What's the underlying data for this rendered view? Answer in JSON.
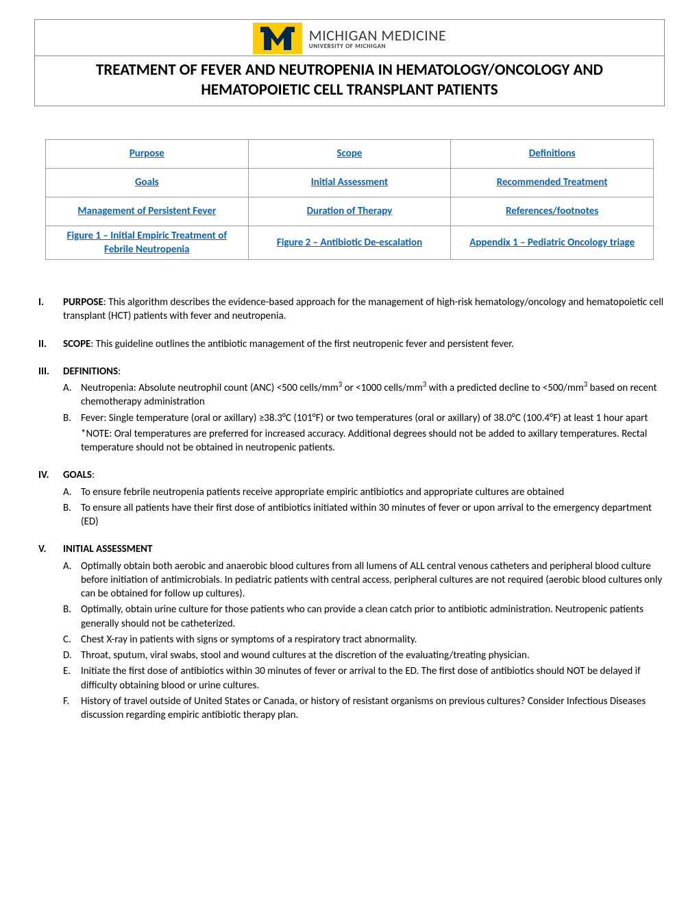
{
  "header": {
    "logo_main": "MICHIGAN MEDICINE",
    "logo_sub": "UNIVERSITY OF MICHIGAN",
    "title_line1": "TREATMENT OF FEVER AND NEUTROPENIA IN HEMATOLOGY/ONCOLOGY AND",
    "title_line2": "HEMATOPOIETIC CELL TRANSPLANT PATIENTS"
  },
  "nav": {
    "rows": [
      [
        "Purpose",
        "Scope",
        "Definitions"
      ],
      [
        "Goals",
        "Initial Assessment",
        "Recommended Treatment"
      ],
      [
        "Management of Persistent Fever",
        "Duration of Therapy",
        "References/footnotes"
      ],
      [
        "Figure 1 – Initial Empiric Treatment of Febrile Neutropenia",
        "Figure 2 – Antibiotic De-escalation",
        "Appendix 1 – Pediatric Oncology triage"
      ]
    ]
  },
  "sections": {
    "purpose": {
      "roman": "I.",
      "label": "PURPOSE",
      "text": ": This algorithm describes the evidence-based approach for the management of high-risk hematology/oncology and hematopoietic cell transplant (HCT) patients with fever and neutropenia."
    },
    "scope": {
      "roman": "II.",
      "label": "SCOPE",
      "text": ": This guideline outlines the antibiotic management of the first neutropenic fever and persistent fever."
    },
    "definitions": {
      "roman": "III.",
      "label": "DEFINITIONS",
      "colon": ":",
      "items": [
        {
          "letter": "A.",
          "pre": "Neutropenia: Absolute neutrophil count (ANC) <500 cells/mm",
          "sup1": "3",
          "mid": " or <1000 cells/mm",
          "sup2": "3",
          "post": " with a predicted decline to <500/mm",
          "sup3": "3",
          "tail": " based on recent chemotherapy administration"
        },
        {
          "letter": "B.",
          "text": "Fever: Single temperature (oral or axillary) ≥38.3°C (101°F) or two temperatures (oral or axillary) of 38.0°C (100.4°F) at least 1 hour apart"
        }
      ],
      "note": "*NOTE: Oral temperatures are preferred for increased accuracy. Additional degrees should not be added to axillary temperatures. Rectal temperature should not be obtained in neutropenic patients."
    },
    "goals": {
      "roman": "IV.",
      "label": "GOALS",
      "colon": ":",
      "items": [
        {
          "letter": "A.",
          "text": "To ensure febrile neutropenia patients receive appropriate empiric antibiotics and appropriate cultures are obtained"
        },
        {
          "letter": "B.",
          "text": "To ensure all patients have their first dose of antibiotics initiated within 30 minutes of fever or upon arrival to the emergency department (ED)"
        }
      ]
    },
    "initial": {
      "roman": "V.",
      "label": "INITIAL ASSESSMENT",
      "items": [
        {
          "letter": "A.",
          "text": "Optimally obtain both aerobic and anaerobic blood cultures from all lumens of ALL central venous catheters and peripheral blood culture before initiation of antimicrobials. In pediatric patients with central access, peripheral cultures are not required (aerobic blood cultures only can be obtained for follow up cultures)."
        },
        {
          "letter": "B.",
          "text": "Optimally, obtain urine culture for those patients who can provide a clean catch prior to antibiotic administration. Neutropenic patients generally should not be catheterized."
        },
        {
          "letter": "C.",
          "text": "Chest X-ray in patients with signs or symptoms of a respiratory tract abnormality."
        },
        {
          "letter": "D.",
          "text": "Throat, sputum, viral swabs, stool and wound cultures at the discretion of the evaluating/treating physician."
        },
        {
          "letter": "E.",
          "text": "Initiate the first dose of antibiotics within 30 minutes of fever or arrival to the ED. The first dose of antibiotics should NOT be delayed if difficulty obtaining blood or urine cultures."
        },
        {
          "letter": "F.",
          "text": "History of travel outside of United States or Canada, or history of resistant organisms on previous cultures? Consider Infectious Diseases discussion regarding empiric antibiotic therapy plan."
        }
      ]
    }
  },
  "colors": {
    "link": "#0563c1",
    "border": "#9a9a9a",
    "logo_bg": "#ffcb05",
    "logo_blue": "#00274c",
    "text": "#000000"
  }
}
